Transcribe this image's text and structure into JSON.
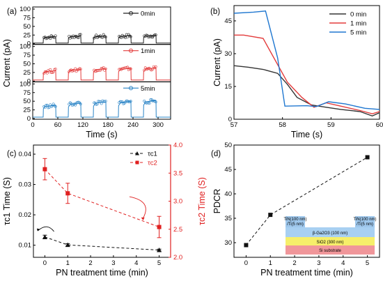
{
  "chart_data": [
    {
      "id": "a",
      "panel_label": "(a)",
      "type": "line",
      "xlabel": "Time (s)",
      "ylabel": "Current (pA)",
      "xlim": [
        0,
        330
      ],
      "xticks": [
        0,
        60,
        120,
        180,
        240,
        300
      ],
      "ylim": [
        0,
        100
      ],
      "yticks": [
        0,
        25,
        50,
        75,
        100
      ],
      "pulse_period_s": 60,
      "pulse_on_s": [
        [
          25,
          55
        ],
        [
          85,
          115
        ],
        [
          145,
          175
        ],
        [
          205,
          235
        ],
        [
          265,
          295
        ]
      ],
      "subplots": [
        {
          "name": "0min",
          "color": "#222222",
          "on_current": [
            20,
            22,
            22,
            23,
            24
          ],
          "off_current": 2
        },
        {
          "name": "1min",
          "color": "#e33b3b",
          "on_current": [
            30,
            34,
            36,
            37,
            38
          ],
          "off_current": 3
        },
        {
          "name": "5min",
          "color": "#2a84c6",
          "on_current": [
            38,
            45,
            48,
            50,
            52
          ],
          "off_current": 4
        }
      ]
    },
    {
      "id": "b",
      "panel_label": "(b)",
      "type": "line",
      "xlabel": "Time (s)",
      "ylabel": "Current (pA)",
      "xlim": [
        57,
        60
      ],
      "xticks": [
        57,
        58,
        59,
        60
      ],
      "ylim": [
        0,
        52
      ],
      "yticks": [
        0,
        15,
        30,
        45
      ],
      "legend": "top-right",
      "series": [
        {
          "name": "0 min",
          "color": "#333333",
          "x": [
            57,
            57.3,
            57.6,
            57.9,
            58.1,
            58.3,
            58.6,
            58.9,
            59.2,
            59.6,
            59.85,
            60
          ],
          "y": [
            24.5,
            23.8,
            22.8,
            21,
            16,
            10,
            6.5,
            5.5,
            4.5,
            3.5,
            1.5,
            3
          ]
        },
        {
          "name": "1 min",
          "color": "#e33b3b",
          "x": [
            57,
            57.2,
            57.6,
            57.85,
            58.1,
            58.4,
            58.65,
            58.9,
            59.2,
            59.6,
            59.85,
            60
          ],
          "y": [
            38.5,
            38.5,
            37,
            27,
            17,
            10,
            5.5,
            7.5,
            6,
            4,
            2.5,
            3.5
          ]
        },
        {
          "name": "5 min",
          "color": "#1f77d0",
          "x": [
            57,
            57.4,
            57.65,
            57.9,
            58.05,
            58.5,
            58.7,
            58.95,
            59.3,
            59.7,
            60
          ],
          "y": [
            48.5,
            49,
            49.5,
            28,
            6,
            6.2,
            5.8,
            8,
            7,
            5,
            4.5
          ]
        }
      ]
    },
    {
      "id": "c",
      "panel_label": "(c)",
      "type": "scatter",
      "xlabel": "PN treatment time (min)",
      "ylabel": "τc1 Time (S)",
      "y2label": "τc2 Time (S)",
      "xlim": [
        -0.5,
        5.5
      ],
      "xticks": [
        0,
        1,
        2,
        3,
        4,
        5
      ],
      "ylim": [
        0.006,
        0.043
      ],
      "yticks": [
        0.01,
        0.02,
        0.03,
        0.04
      ],
      "y2lim": [
        2.0,
        4.0
      ],
      "y2ticks": [
        2.0,
        2.5,
        3.0,
        3.5,
        4.0
      ],
      "legend": "top-right",
      "series": [
        {
          "name": "τc1",
          "axis": "left",
          "marker": "triangle",
          "color": "#111111",
          "x": [
            0,
            1,
            5
          ],
          "y": [
            0.0127,
            0.0101,
            0.0084
          ],
          "yerr": [
            0.0006,
            0.0004,
            0.0003
          ]
        },
        {
          "name": "τc2",
          "axis": "right",
          "marker": "square",
          "color": "#e02020",
          "x": [
            0,
            1,
            5
          ],
          "y": [
            3.57,
            3.14,
            2.54
          ],
          "yerr": [
            0.19,
            0.18,
            0.19
          ]
        }
      ]
    },
    {
      "id": "d",
      "panel_label": "(d)",
      "type": "scatter",
      "xlabel": "PN treatment time (min)",
      "ylabel": "PDCR",
      "xlim": [
        -0.5,
        5.5
      ],
      "xticks": [
        0,
        1,
        2,
        3,
        4,
        5
      ],
      "ylim": [
        27,
        50
      ],
      "yticks": [
        30,
        35,
        40,
        45,
        50
      ],
      "series": [
        {
          "name": "PDCR",
          "marker": "square",
          "color": "#111111",
          "x": [
            0,
            1,
            5
          ],
          "y": [
            29.5,
            35.7,
            47.5
          ]
        }
      ],
      "inset": {
        "electrode_left": "TiN(100 nm)\n/Ti(5 nm)",
        "electrode_right": "TiN(100 nm)\n/Ti(5 nm)",
        "layer1": "β-Ga2O3 (100 nm)",
        "layer2": "SiO2 (300 nm)",
        "layer3": "Si substrate",
        "colors": {
          "electrode": "#9ec7ec",
          "layer1": "#a8d0f2",
          "layer2": "#f6ef6a",
          "layer3": "#f0969a"
        }
      }
    }
  ]
}
